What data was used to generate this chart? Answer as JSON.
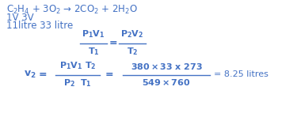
{
  "bg_color": "#ffffff",
  "text_color": "#4472c4",
  "equation_line": "C$_2$H$_4$ + 3O$_2$ → 2CO$_2$ + 2H$_2$O",
  "line2": "1V 3V",
  "line3": "11litre 33 litre",
  "col": "#4472c4",
  "fs_text": 8.5,
  "fs_formula": 8.0,
  "fig_w": 3.75,
  "fig_h": 1.67,
  "dpi": 100
}
